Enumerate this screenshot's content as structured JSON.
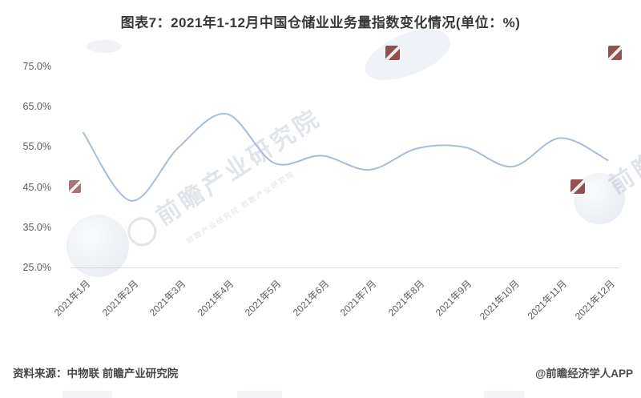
{
  "title": "图表7：2021年1-12月中国仓储业业务量指数变化情况(单位：%)",
  "footer": {
    "source": "资料来源：中物联 前瞻产业研究院",
    "credit": "@前瞻经济学人APP"
  },
  "watermark": {
    "brand_text": "前瞻产业研究院",
    "small_text": "前瞻产业研究院 前瞻产业研究院"
  },
  "colors": {
    "line": "#a8bdd4",
    "axis_line": "#d8d8d8",
    "title_text": "#383838",
    "tick_text": "#5c5c5c",
    "watermark_gray": "#b2bccc",
    "logo_red": "#84393b"
  },
  "chart_data": {
    "type": "line",
    "title": "图表7：2021年1-12月中国仓储业业务量指数变化情况(单位：%)",
    "categories": [
      "2021年1月",
      "2021年2月",
      "2021年3月",
      "2021年4月",
      "2021年5月",
      "2021年6月",
      "2021年7月",
      "2021年8月",
      "2021年9月",
      "2021年10月",
      "2021年11月",
      "2021年12月"
    ],
    "values": [
      58.5,
      41.6,
      54.9,
      63.2,
      51.0,
      52.8,
      49.3,
      54.6,
      54.9,
      50.1,
      57.2,
      51.7
    ],
    "unit": "%",
    "yticks": [
      "75.0%",
      "65.0%",
      "55.0%",
      "45.0%",
      "35.0%",
      "25.0%"
    ],
    "ylim": [
      25,
      75
    ],
    "smooth": true,
    "grid": false,
    "legend": false,
    "line_color": "#a8bdd4"
  }
}
